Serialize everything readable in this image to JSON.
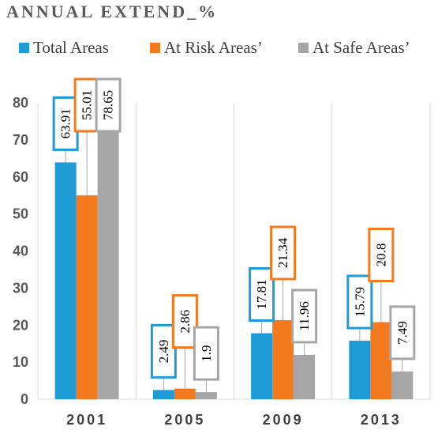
{
  "chart_data": {
    "type": "bar",
    "title": "ANNUAL EXTEND_%",
    "categories": [
      "2001",
      "2005",
      "2009",
      "2013"
    ],
    "series": [
      {
        "name": "Total Areas",
        "color": "#1f9bd7",
        "values": [
          63.91,
          2.49,
          17.81,
          15.79
        ],
        "labels": [
          "63.91",
          "2.49",
          "17.81",
          "15.79"
        ]
      },
      {
        "name": "At Risk Areas’",
        "color": "#f47a20",
        "values": [
          55.01,
          2.86,
          21.34,
          20.8
        ],
        "labels": [
          "55.01",
          "2.86",
          "21.34",
          "20.8"
        ]
      },
      {
        "name": "At Safe Areas’",
        "color": "#a6a6a6",
        "values": [
          78.65,
          1.9,
          11.96,
          7.49
        ],
        "labels": [
          "78.65",
          "1.9",
          "11.96",
          "7.49"
        ]
      }
    ],
    "yticks": [
      "0",
      "10",
      "20",
      "30",
      "40",
      "50",
      "60",
      "70",
      "80"
    ],
    "ylim": [
      0,
      80
    ],
    "legend": "top",
    "grid": "vertical category separators"
  }
}
